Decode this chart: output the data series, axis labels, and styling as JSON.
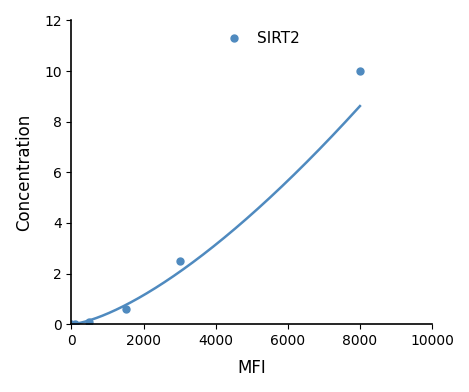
{
  "x": [
    0,
    100,
    500,
    1500,
    3000,
    8000
  ],
  "y": [
    0.0,
    0.02,
    0.1,
    0.6,
    2.5,
    10.0
  ],
  "line_color": "#4f8abf",
  "marker": "o",
  "marker_size": 5,
  "label": "SIRT2",
  "xlabel": "MFI",
  "ylabel": "Concentration",
  "xlim": [
    0,
    10000
  ],
  "ylim": [
    0,
    12
  ],
  "xticks": [
    0,
    2000,
    4000,
    6000,
    8000,
    10000
  ],
  "yticks": [
    0,
    2,
    4,
    6,
    8,
    10,
    12
  ],
  "xlabel_fontsize": 12,
  "ylabel_fontsize": 12,
  "xlabel_fontweight": "normal",
  "ylabel_fontweight": "normal",
  "legend_fontsize": 11,
  "tick_fontsize": 10,
  "background_color": "#ffffff",
  "figsize": [
    4.69,
    3.92
  ],
  "dpi": 100
}
